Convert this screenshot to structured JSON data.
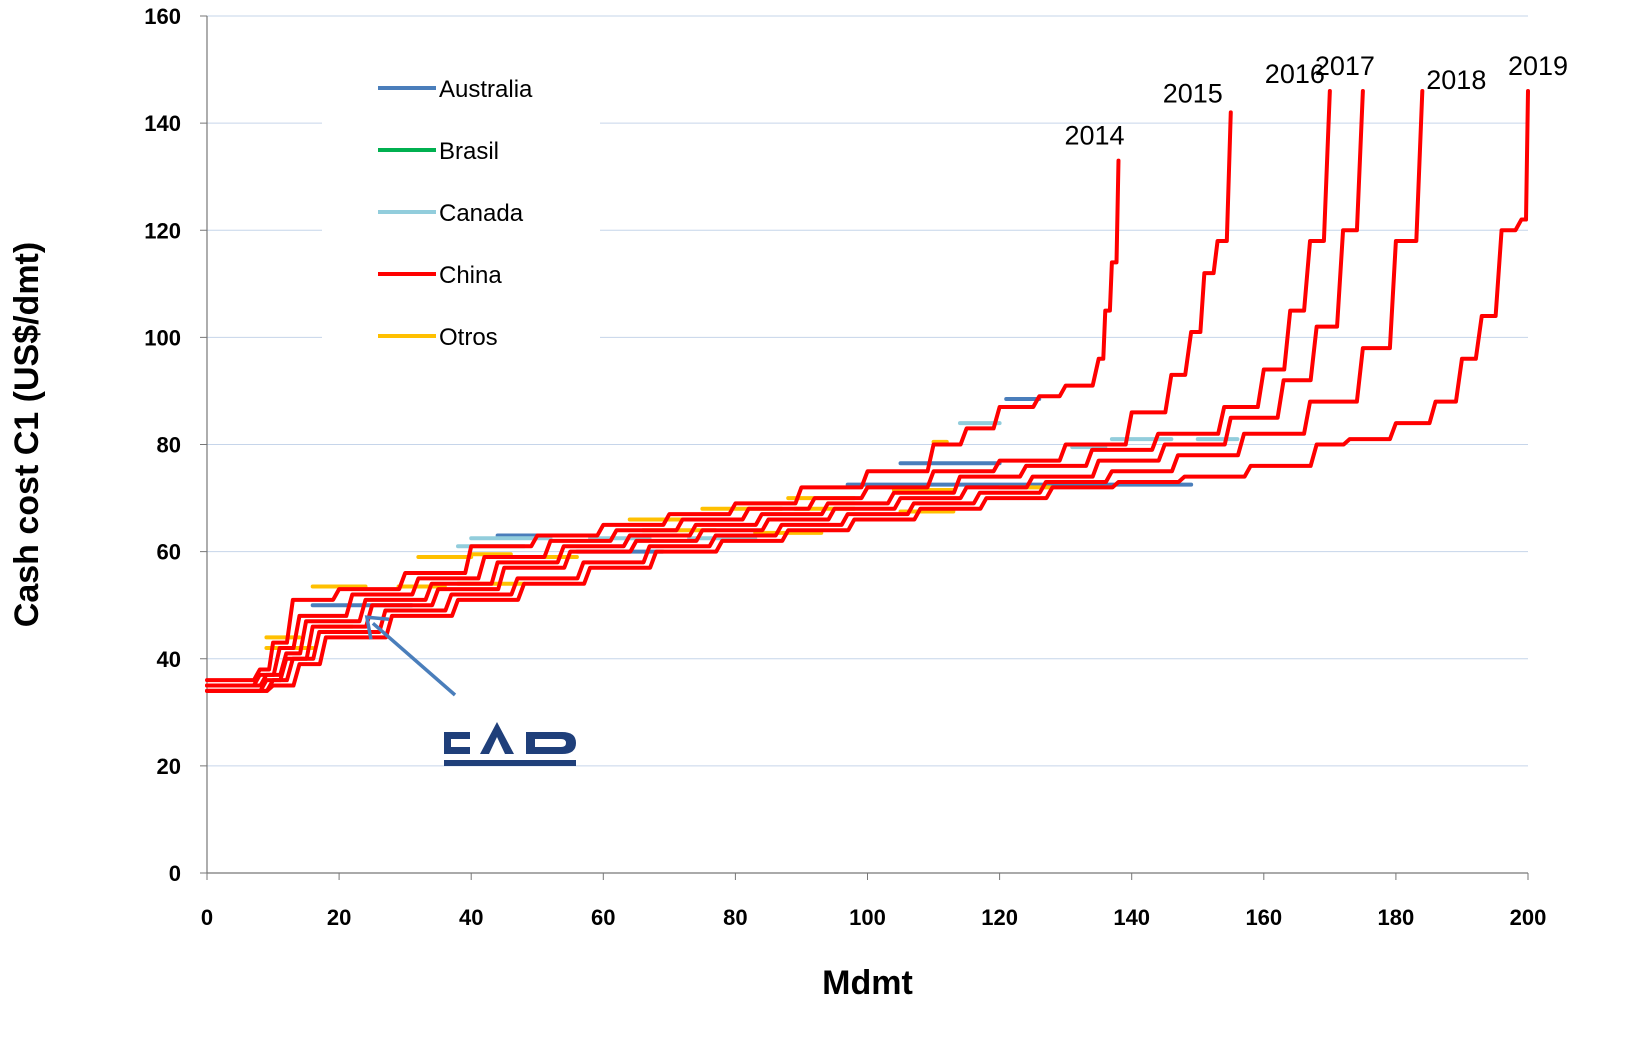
{
  "chart_data": {
    "type": "line",
    "xlabel": "Mdmt",
    "ylabel": "Cash cost C1 (US$/dmt)",
    "xlim": [
      0,
      200
    ],
    "ylim": [
      0,
      160
    ],
    "xticks": [
      0,
      20,
      40,
      60,
      80,
      100,
      120,
      140,
      160,
      180,
      200
    ],
    "yticks": [
      0,
      20,
      40,
      60,
      80,
      100,
      120,
      140,
      160
    ],
    "grid": "horizontal",
    "legend_position": "top-left",
    "legend": [
      {
        "label": "Australia",
        "color": "#4a7ebb"
      },
      {
        "label": "Brasil",
        "color": "#00b050"
      },
      {
        "label": "Canada",
        "color": "#92cddc"
      },
      {
        "label": "China",
        "color": "#ff0000"
      },
      {
        "label": "Otros",
        "color": "#ffc000"
      }
    ],
    "series": [
      {
        "name": "2014",
        "color": "#ff0000",
        "x": [
          0,
          8,
          10,
          13,
          20,
          30,
          40,
          50,
          60,
          70,
          80,
          90,
          100,
          110,
          115,
          120,
          126,
          130,
          135,
          136,
          137,
          138
        ],
        "y": [
          36,
          38,
          43,
          51,
          53,
          56,
          61,
          63,
          65,
          67,
          69,
          72,
          75,
          80,
          83,
          87,
          89,
          91,
          96,
          105,
          114,
          133
        ]
      },
      {
        "name": "2015",
        "color": "#ff0000",
        "x": [
          0,
          8,
          11,
          14,
          22,
          32,
          42,
          52,
          62,
          72,
          82,
          92,
          100,
          110,
          120,
          130,
          140,
          146,
          149,
          151,
          153,
          155
        ],
        "y": [
          35,
          37,
          42,
          48,
          52,
          55,
          59,
          62,
          64,
          66,
          68,
          70,
          72,
          75,
          77,
          80,
          86,
          93,
          101,
          112,
          118,
          142
        ]
      },
      {
        "name": "2016",
        "color": "#ff0000",
        "x": [
          0,
          9,
          12,
          15,
          24,
          34,
          44,
          54,
          64,
          74,
          84,
          94,
          104,
          114,
          124,
          134,
          144,
          154,
          160,
          164,
          167,
          170
        ],
        "y": [
          35,
          37,
          41,
          47,
          51,
          54,
          58,
          61,
          63,
          65,
          67,
          69,
          71,
          74,
          76,
          79,
          82,
          87,
          94,
          105,
          118,
          146
        ]
      },
      {
        "name": "2017",
        "color": "#ff0000",
        "x": [
          0,
          9,
          12,
          16,
          25,
          35,
          45,
          55,
          65,
          75,
          85,
          95,
          105,
          115,
          125,
          135,
          145,
          155,
          163,
          168,
          172,
          175
        ],
        "y": [
          34,
          36,
          40,
          46,
          50,
          53,
          57,
          60,
          62,
          64,
          66,
          68,
          70,
          72,
          74,
          77,
          80,
          85,
          92,
          102,
          120,
          146
        ]
      },
      {
        "name": "2018",
        "color": "#ff0000",
        "x": [
          0,
          10,
          13,
          17,
          27,
          37,
          47,
          57,
          67,
          77,
          87,
          97,
          107,
          117,
          127,
          137,
          147,
          157,
          167,
          175,
          180,
          184
        ],
        "y": [
          34,
          36,
          40,
          45,
          49,
          52,
          55,
          58,
          61,
          63,
          65,
          67,
          69,
          71,
          73,
          75,
          78,
          82,
          88,
          98,
          118,
          146
        ]
      },
      {
        "name": "2019",
        "color": "#ff0000",
        "x": [
          0,
          10,
          14,
          18,
          28,
          38,
          48,
          58,
          68,
          78,
          88,
          98,
          108,
          118,
          128,
          138,
          148,
          158,
          168,
          173,
          180,
          186,
          190,
          193,
          196,
          199,
          200
        ],
        "y": [
          34,
          35,
          39,
          44,
          48,
          51,
          54,
          57,
          60,
          62,
          64,
          66,
          68,
          70,
          72,
          73,
          74,
          76,
          80,
          81,
          84,
          88,
          96,
          104,
          120,
          122,
          146
        ]
      }
    ],
    "segments": [
      {
        "series": "Australia",
        "x": [
          16,
          31
        ],
        "y": 50
      },
      {
        "series": "Australia",
        "x": [
          56,
          69
        ],
        "y": 60
      },
      {
        "series": "Australia",
        "x": [
          44,
          58
        ],
        "y": 63
      },
      {
        "series": "Australia",
        "x": [
          97,
          149
        ],
        "y": 72.5
      },
      {
        "series": "Australia",
        "x": [
          105,
          120
        ],
        "y": 76.5
      },
      {
        "series": "Australia",
        "x": [
          121,
          126
        ],
        "y": 88.5
      },
      {
        "series": "Canada",
        "x": [
          38,
          48
        ],
        "y": 61
      },
      {
        "series": "Canada",
        "x": [
          40,
          52
        ],
        "y": 62.5
      },
      {
        "series": "Canada",
        "x": [
          73,
          83
        ],
        "y": 62.5
      },
      {
        "series": "Canada",
        "x": [
          58,
          67
        ],
        "y": 62.5
      },
      {
        "series": "Canada",
        "x": [
          114,
          120
        ],
        "y": 84
      },
      {
        "series": "Canada",
        "x": [
          131,
          136
        ],
        "y": 79.5
      },
      {
        "series": "Canada",
        "x": [
          137,
          146
        ],
        "y": 81
      },
      {
        "series": "Canada",
        "x": [
          150,
          156
        ],
        "y": 81
      },
      {
        "series": "Otros",
        "x": [
          9,
          16
        ],
        "y": 42
      },
      {
        "series": "Otros",
        "x": [
          9,
          14
        ],
        "y": 44
      },
      {
        "series": "Otros",
        "x": [
          17,
          22
        ],
        "y": 46
      },
      {
        "series": "Otros",
        "x": [
          16,
          24
        ],
        "y": 53.5
      },
      {
        "series": "Otros",
        "x": [
          29,
          36
        ],
        "y": 53.5
      },
      {
        "series": "Otros",
        "x": [
          32,
          40
        ],
        "y": 59
      },
      {
        "series": "Otros",
        "x": [
          40,
          46
        ],
        "y": 59.5
      },
      {
        "series": "Otros",
        "x": [
          50,
          56
        ],
        "y": 59
      },
      {
        "series": "Otros",
        "x": [
          38,
          48
        ],
        "y": 54
      },
      {
        "series": "Otros",
        "x": [
          64,
          72
        ],
        "y": 66
      },
      {
        "series": "Otros",
        "x": [
          66,
          77
        ],
        "y": 64
      },
      {
        "series": "Otros",
        "x": [
          75,
          87
        ],
        "y": 68
      },
      {
        "series": "Otros",
        "x": [
          83,
          93
        ],
        "y": 63.5
      },
      {
        "series": "Otros",
        "x": [
          88,
          98
        ],
        "y": 70
      },
      {
        "series": "Otros",
        "x": [
          89,
          98
        ],
        "y": 68
      },
      {
        "series": "Otros",
        "x": [
          104,
          113
        ],
        "y": 71.5
      },
      {
        "series": "Otros",
        "x": [
          105,
          113
        ],
        "y": 67.5
      },
      {
        "series": "Otros",
        "x": [
          120,
          128
        ],
        "y": 72
      },
      {
        "series": "Otros",
        "x": [
          110,
          112
        ],
        "y": 80.5
      }
    ],
    "annotations": [
      {
        "text": "2014",
        "x": 138,
        "y": 133
      },
      {
        "text": "2015",
        "x": 155,
        "y": 142
      },
      {
        "text": "2016",
        "x": 170,
        "y": 146
      },
      {
        "text": "2017",
        "x": 175,
        "y": 146
      },
      {
        "text": "2018",
        "x": 184,
        "y": 146
      },
      {
        "text": "2019",
        "x": 200,
        "y": 146
      }
    ],
    "pointer": {
      "label": "CAP",
      "x": 23,
      "y": 47
    }
  }
}
